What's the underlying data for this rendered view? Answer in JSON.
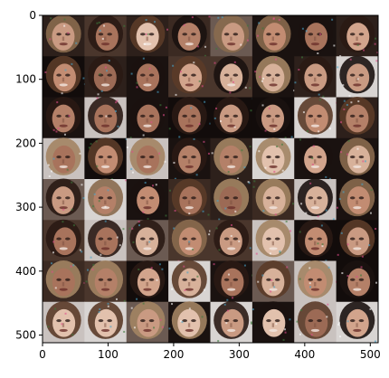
{
  "figure": {
    "content": "8 x 8 grid of blurry generated face images",
    "x_ticks": [
      "0",
      "100",
      "200",
      "300",
      "400",
      "500"
    ],
    "y_ticks": [
      "0",
      "100",
      "200",
      "300",
      "400",
      "500"
    ],
    "x_range": [
      0,
      512
    ],
    "y_range": [
      512,
      0
    ],
    "grid_rows": 8,
    "grid_cols": 8
  },
  "colors": {
    "axis": "#000000",
    "background": "#ffffff"
  }
}
